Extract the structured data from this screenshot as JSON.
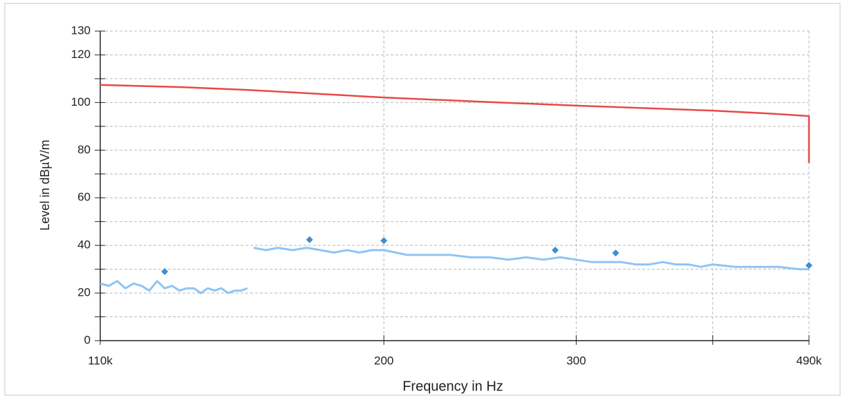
{
  "chart_data": {
    "type": "line",
    "xlabel": "Frequency in Hz",
    "ylabel": "Level in dBµV/m",
    "xscale": "log",
    "grid": true,
    "xlim": [
      110,
      490
    ],
    "ylim": [
      0,
      130
    ],
    "xticks": [
      {
        "value": 110,
        "label": "110k"
      },
      200,
      300,
      {
        "value": 400,
        "label": null
      },
      {
        "value": 490,
        "label": "490k"
      }
    ],
    "yticks": [
      0,
      {
        "value": 10,
        "label": null
      },
      20,
      {
        "value": 30,
        "label": null
      },
      40,
      {
        "value": 50,
        "label": null
      },
      60,
      {
        "value": 70,
        "label": null
      },
      80,
      {
        "value": 90,
        "label": null
      },
      100,
      {
        "value": 110,
        "label": null
      },
      120,
      130
    ],
    "series": [
      {
        "color": "#e84848",
        "marker": "none",
        "x": [
          110,
          130,
          150,
          170,
          200,
          250,
          300,
          350,
          400,
          450,
          490,
          490
        ],
        "values": [
          107.4,
          106.5,
          105.3,
          103.9,
          102.1,
          100.2,
          98.7,
          97.6,
          96.6,
          95.4,
          94.3,
          74.6
        ]
      },
      {
        "color": "#8ec4f5",
        "marker": "none",
        "x": [
          110,
          112,
          114,
          116,
          118,
          120,
          122,
          124,
          126,
          128,
          130,
          132,
          134,
          136,
          138,
          140,
          142,
          144,
          146,
          148,
          150,
          151,
          152,
          156,
          160,
          165,
          170,
          175,
          180,
          185,
          190,
          195,
          200,
          210,
          220,
          230,
          240,
          250,
          260,
          270,
          280,
          290,
          300,
          310,
          320,
          330,
          340,
          350,
          360,
          370,
          380,
          390,
          400,
          420,
          440,
          460,
          480,
          490
        ],
        "values": [
          24,
          23,
          25,
          22,
          24,
          23,
          21,
          25,
          22,
          23,
          21,
          22,
          22,
          20,
          22,
          21,
          22,
          20,
          21,
          21,
          22,
          null,
          39,
          38,
          39,
          38,
          39,
          38,
          37,
          38,
          37,
          38,
          38,
          36,
          36,
          36,
          35,
          35,
          34,
          35,
          34,
          35,
          34,
          33,
          33,
          33,
          32,
          32,
          33,
          32,
          32,
          31,
          32,
          31,
          31,
          31,
          30,
          30
        ]
      },
      {
        "color": "#3a8fd6",
        "marker": "diamond",
        "x": [
          126,
          171,
          200,
          287,
          326,
          490
        ],
        "values": [
          29,
          42.4,
          42,
          38,
          36.8,
          31.6
        ]
      }
    ]
  }
}
